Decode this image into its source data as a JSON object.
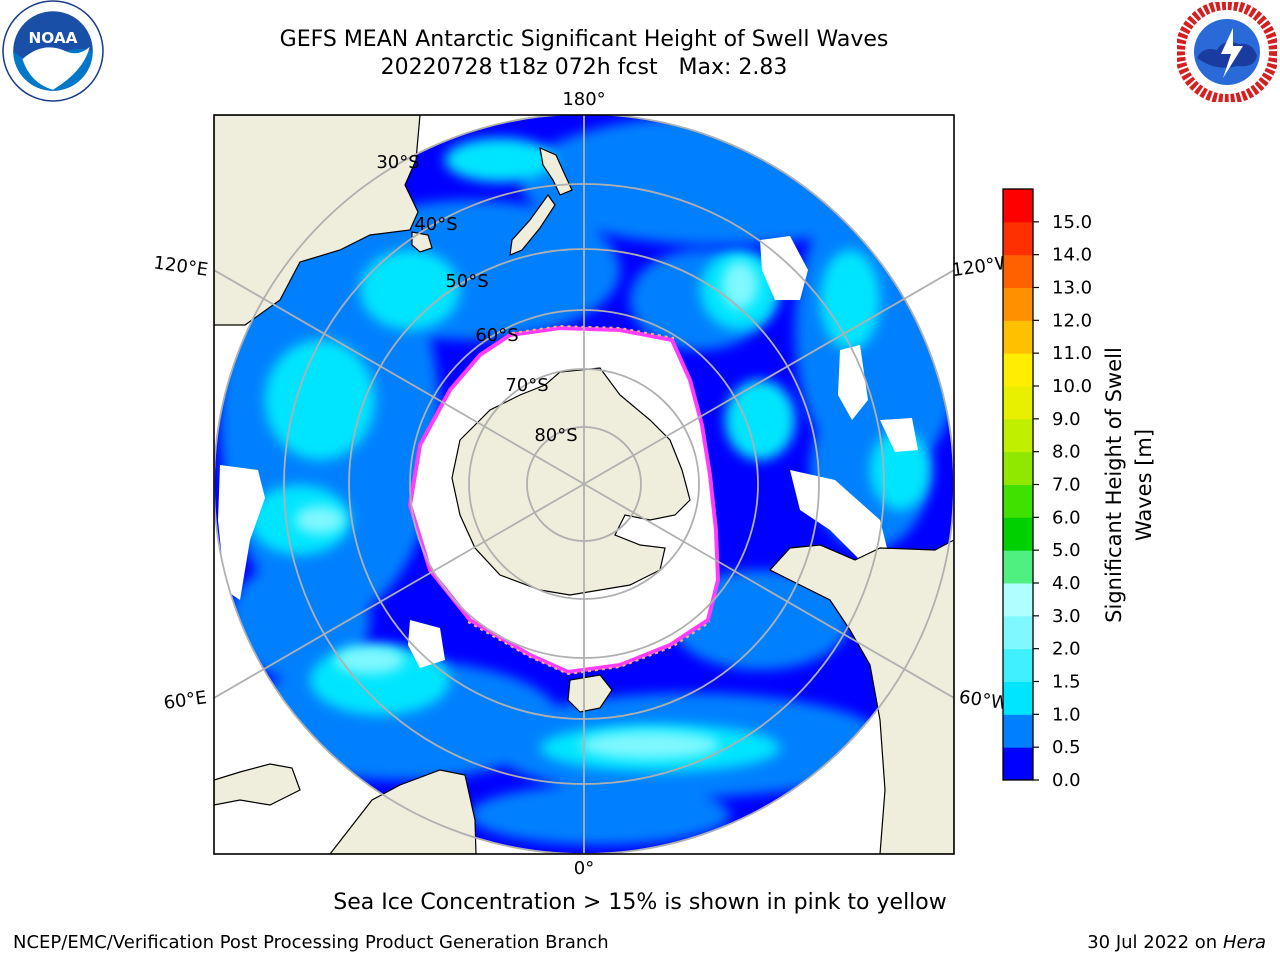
{
  "header": {
    "title_line1": "GEFS MEAN Antarctic Significant Height of Swell Waves",
    "title_line2": "20220728 t18z 072h fcst   Max: 2.83"
  },
  "logos": {
    "left": {
      "name": "noaa-logo",
      "text": "NOAA"
    },
    "right": {
      "name": "nws-logo"
    }
  },
  "map": {
    "projection": "south-polar-stereographic",
    "longitude_labels": {
      "top": "180°",
      "bottom": "0°",
      "upper_left": "120°E",
      "lower_left": "60°E",
      "upper_right": "120°W",
      "lower_right": "60°W"
    },
    "latitude_labels": [
      "30°S",
      "40°S",
      "50°S",
      "60°S",
      "70°S",
      "80°S"
    ],
    "colors": {
      "land": "#efeedc",
      "ice_edge": "#ff3cff",
      "grid": "#b0b0b0",
      "no_data": "#ffffff"
    }
  },
  "colorbar": {
    "label": "Significant Height of Swell Waves [m]",
    "ticks": [
      "0.0",
      "0.5",
      "1.0",
      "1.5",
      "2.0",
      "3.0",
      "4.0",
      "5.0",
      "6.0",
      "7.0",
      "8.0",
      "9.0",
      "10.0",
      "11.0",
      "12.0",
      "13.0",
      "14.0",
      "15.0"
    ],
    "colors": [
      "#0000ff",
      "#0080ff",
      "#00e5ff",
      "#40f0ff",
      "#80f8ff",
      "#b0ffff",
      "#50f080",
      "#00d000",
      "#40e000",
      "#90e800",
      "#c0f000",
      "#e8f000",
      "#ffee00",
      "#ffc000",
      "#ff9000",
      "#ff6000",
      "#ff3000",
      "#ff0000"
    ]
  },
  "caption": "Sea Ice Concentration > 15% is shown in pink to yellow",
  "footer": {
    "left": "NCEP/EMC/Verification Post Processing Product Generation Branch",
    "right_prefix": "30 Jul 2022 on ",
    "right_machine": "Hera"
  }
}
